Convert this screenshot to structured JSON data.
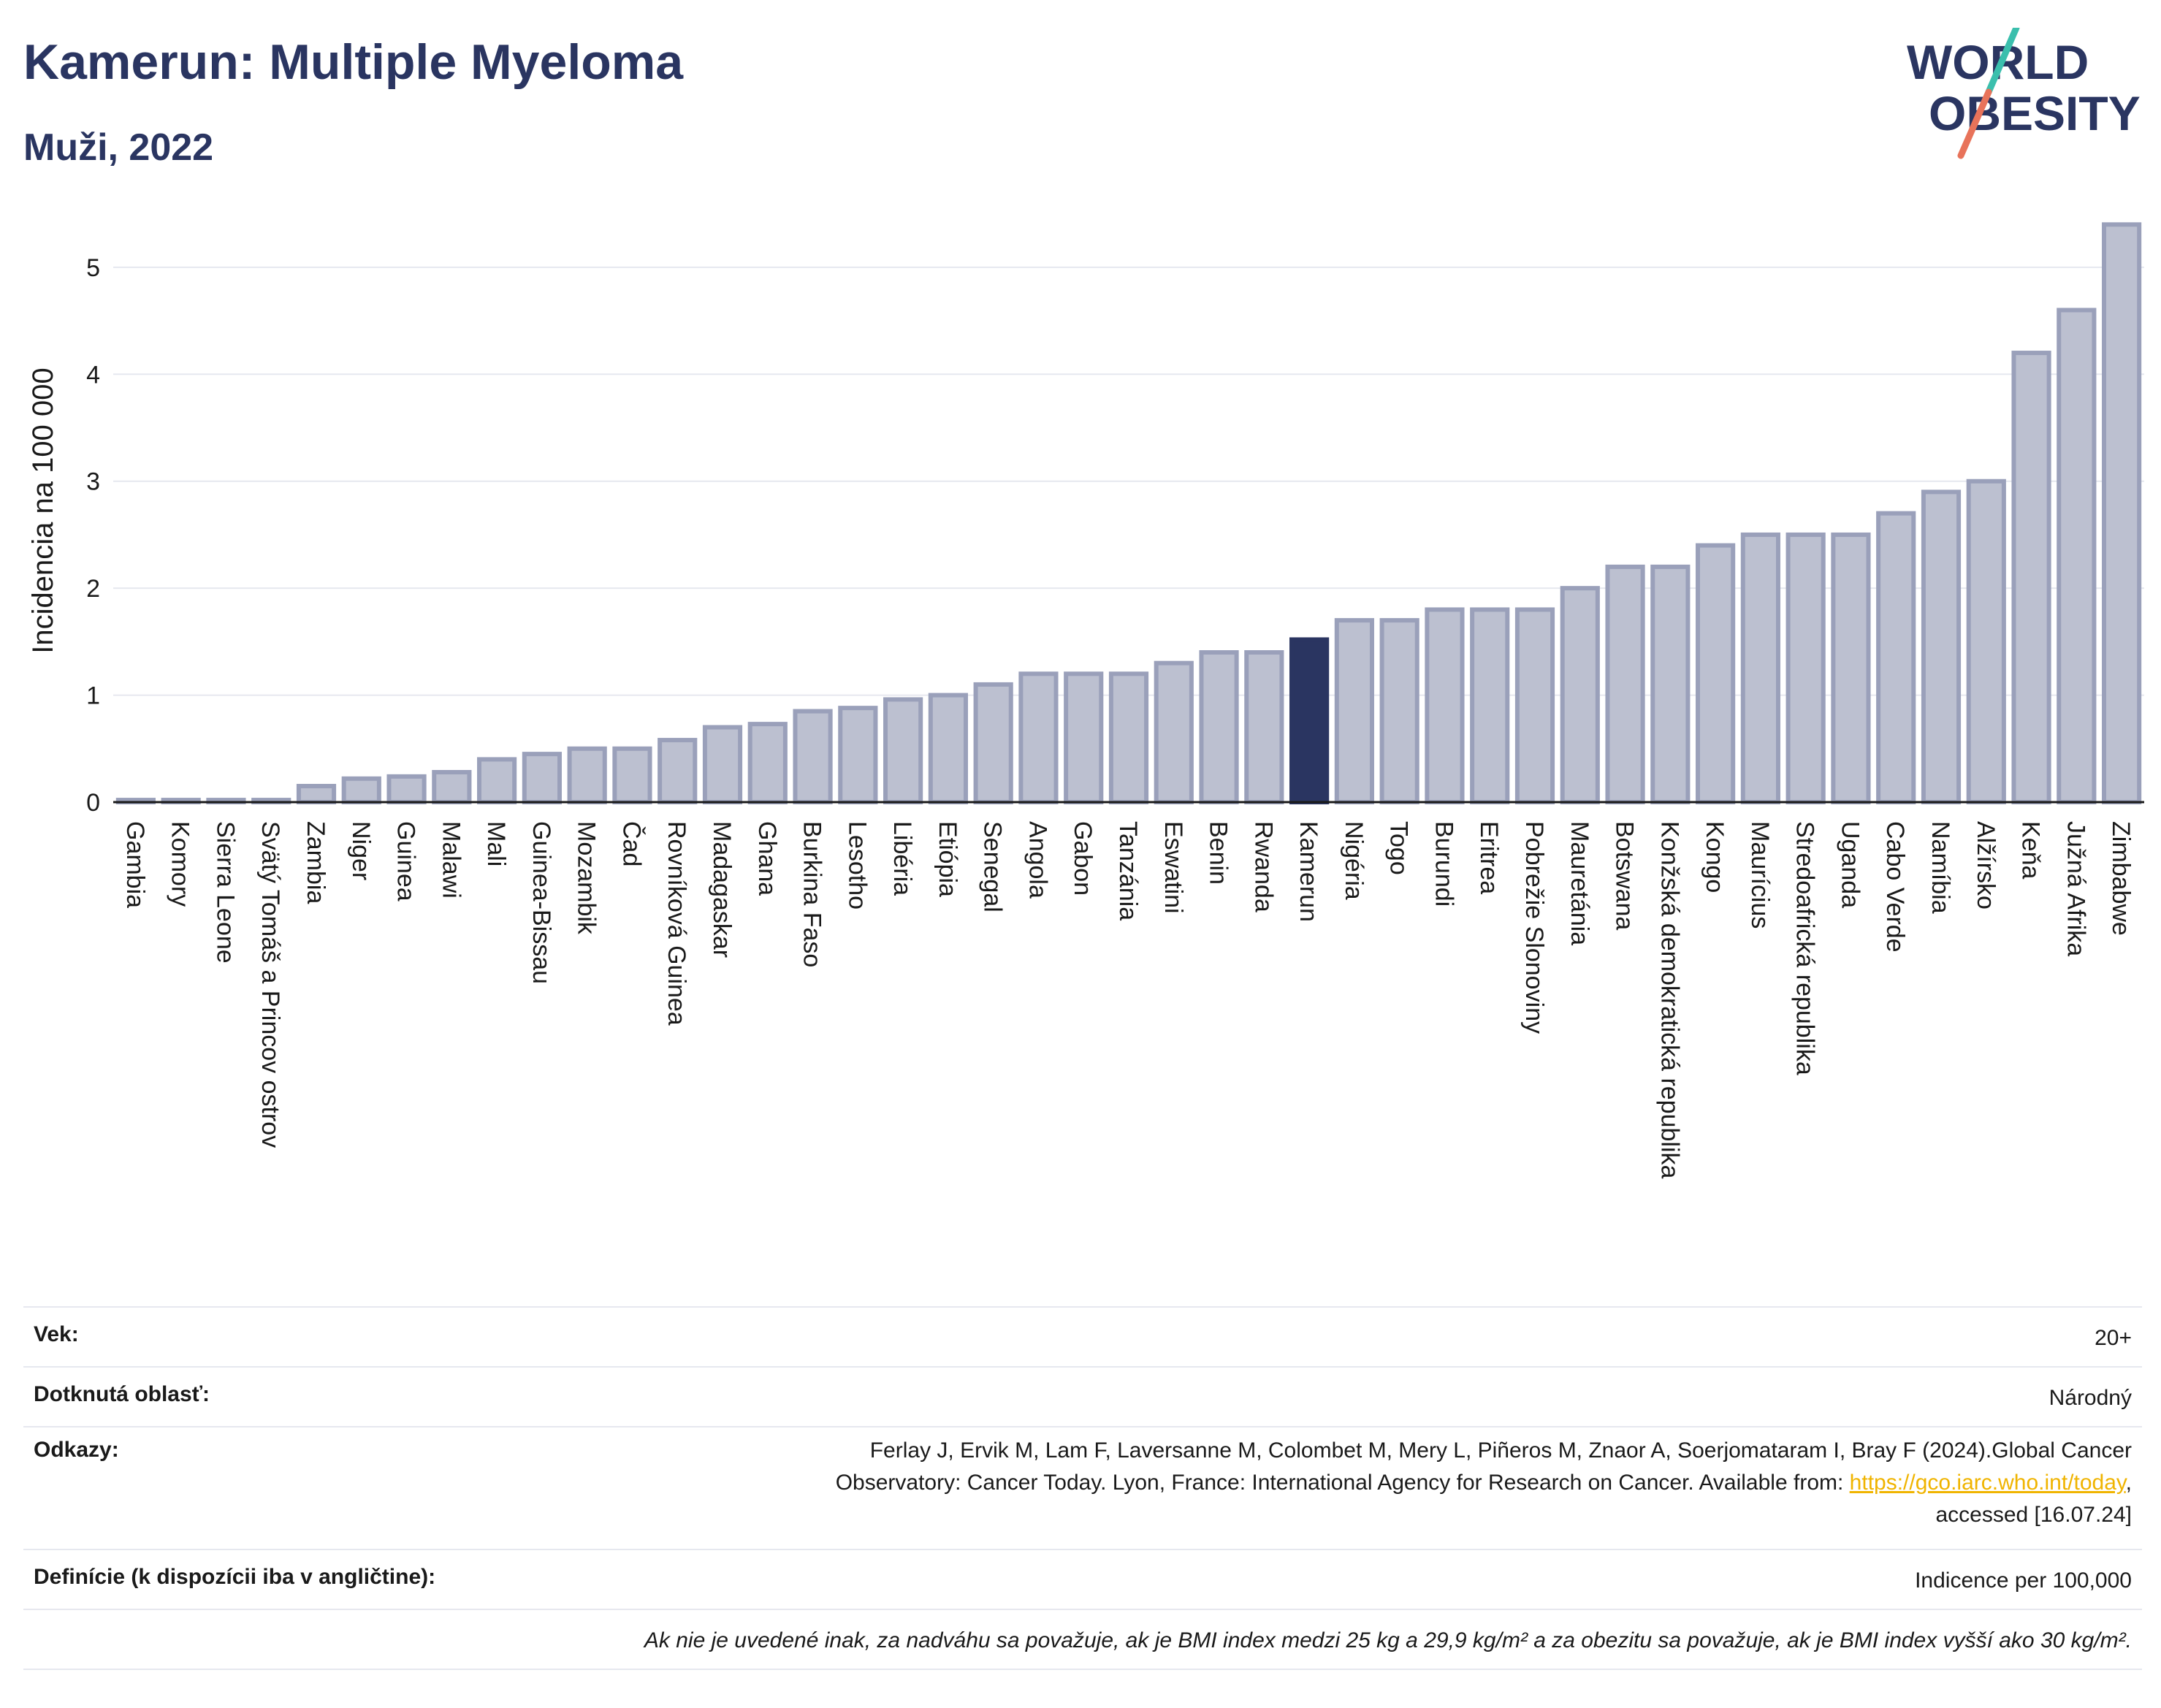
{
  "header": {
    "title": "Kamerun: Multiple Myeloma",
    "subtitle": "Muži, 2022"
  },
  "logo": {
    "line1": "WORLD",
    "line2": "OBESITY"
  },
  "colors": {
    "bar_fill": "#bcc0d0",
    "bar_stroke": "#9aa0ba",
    "highlight": "#2a3561",
    "grid": "#e6e8ef",
    "axis": "#1a1a1a",
    "logo_teal": "#3bbfad",
    "logo_red": "#e8735a"
  },
  "chart_data": {
    "type": "bar",
    "ylabel": "Incidencia na 100 000",
    "ylim": [
      0,
      5.45
    ],
    "yticks": [
      0,
      1,
      2,
      3,
      4,
      5
    ],
    "grid": true,
    "highlight": "Kamerun",
    "categories": [
      "Gambia",
      "Komory",
      "Sierra Leone",
      "Svätý Tomáš a Princov ostrov",
      "Zambia",
      "Niger",
      "Guinea",
      "Malawi",
      "Mali",
      "Guinea-Bissau",
      "Mozambik",
      "Čad",
      "Rovníková Guinea",
      "Madagaskar",
      "Ghana",
      "Burkina Faso",
      "Lesotho",
      "Libéria",
      "Etiópia",
      "Senegal",
      "Angola",
      "Gabon",
      "Tanzánia",
      "Eswatini",
      "Benin",
      "Rwanda",
      "Kamerun",
      "Nigéria",
      "Togo",
      "Burundi",
      "Eritrea",
      "Pobrežie Slonoviny",
      "Mauretánia",
      "Botswana",
      "Konžská demokratická republika",
      "Kongo",
      "Maurícius",
      "Stredoafrická republika",
      "Uganda",
      "Cabo Verde",
      "Namíbia",
      "Alžírsko",
      "Keňa",
      "Južná Afrika",
      "Zimbabwe"
    ],
    "values": [
      0.02,
      0.02,
      0.02,
      0.02,
      0.15,
      0.22,
      0.24,
      0.28,
      0.4,
      0.45,
      0.5,
      0.5,
      0.58,
      0.7,
      0.73,
      0.85,
      0.88,
      0.96,
      1.0,
      1.1,
      1.2,
      1.2,
      1.2,
      1.3,
      1.4,
      1.4,
      1.52,
      1.7,
      1.7,
      1.8,
      1.8,
      1.8,
      2.0,
      2.2,
      2.2,
      2.4,
      2.5,
      2.5,
      2.5,
      2.7,
      2.9,
      3.0,
      4.2,
      4.6,
      5.4
    ]
  },
  "info": {
    "age_label": "Vek:",
    "age_value": "20+",
    "area_label": "Dotknutá oblasť:",
    "area_value": "Národný",
    "refs_label": "Odkazy:",
    "refs_line1": "Ferlay J, Ervik M, Lam F, Laversanne M, Colombet M, Mery L, Piñeros M, Znaor A, Soerjomataram I, Bray F (2024).Global Cancer",
    "refs_line2": "Observatory: Cancer Today. Lyon, France: International Agency for Research on Cancer. Available from: ",
    "refs_link": "https://gco.iarc.who.int/today",
    "refs_line2_end": ",",
    "refs_line3": "accessed [16.07.24]",
    "def_label": "Definície (k dispozícii iba v angličtine):",
    "def_value": "Indicence per 100,000",
    "note": "Ak nie je uvedené inak, za nadváhu sa považuje, ak je BMI index medzi 25 kg a 29,9 kg/m² a za obezitu sa považuje, ak je BMI index vyšší ako 30 kg/m²."
  }
}
